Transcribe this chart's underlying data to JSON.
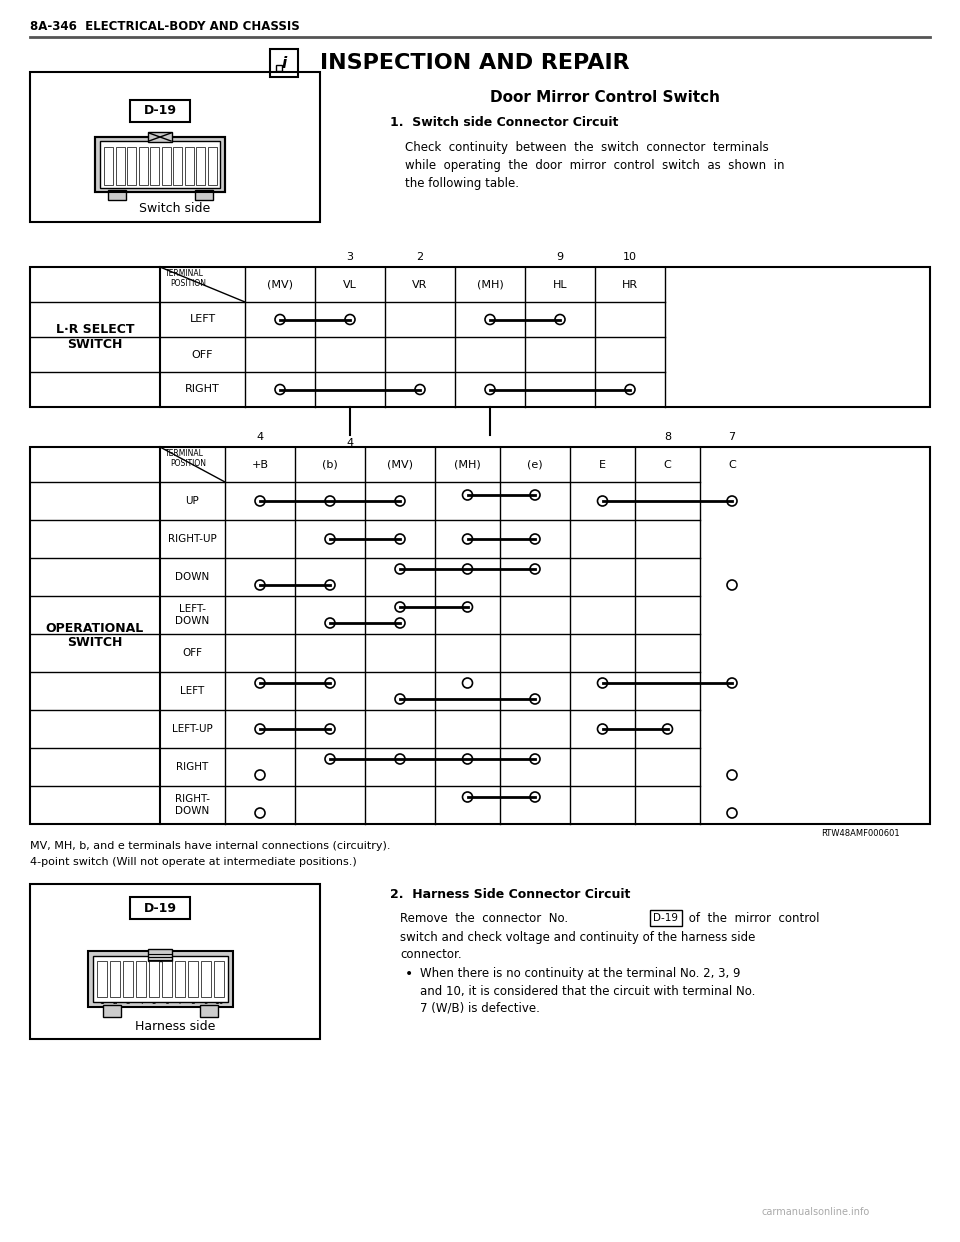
{
  "header_text": "8A-346  ELECTRICAL-BODY AND CHASSIS",
  "title": "INSPECTION AND REPAIR",
  "section_title": "Door Mirror Control Switch",
  "subsection1": "1.  Switch side Connector Circuit",
  "subsection1_text": "Check  continuity  between  the  switch  connector  terminals\nwhile  operating  the  door  mirror  control  switch  as  shown  in\nthe following table.",
  "subsection2": "2.  Harness Side Connector Circuit",
  "subsection2_text": "Remove  the  connector  No.  D-19  of  the  mirror  control\nswitch and check voltage and continuity of the harness side\nconnector.",
  "bullet_text": "When there is no continuity at the terminal No. 2, 3, 9\nand 10, it is considered that the circuit with terminal No.\n7 (W/B) is defective.",
  "switch_label": "D-19",
  "switch_side_label": "Switch side",
  "harness_side_label": "Harness side",
  "footnote1": "MV, MH, b, and e terminals have internal connections (circuitry).",
  "footnote2": "4-point switch (Will not operate at intermediate positions.)",
  "rtw_label": "RTW48AMF000601",
  "bg_color": "#ffffff",
  "table_border": "#000000",
  "light_gray": "#e8e8e8"
}
